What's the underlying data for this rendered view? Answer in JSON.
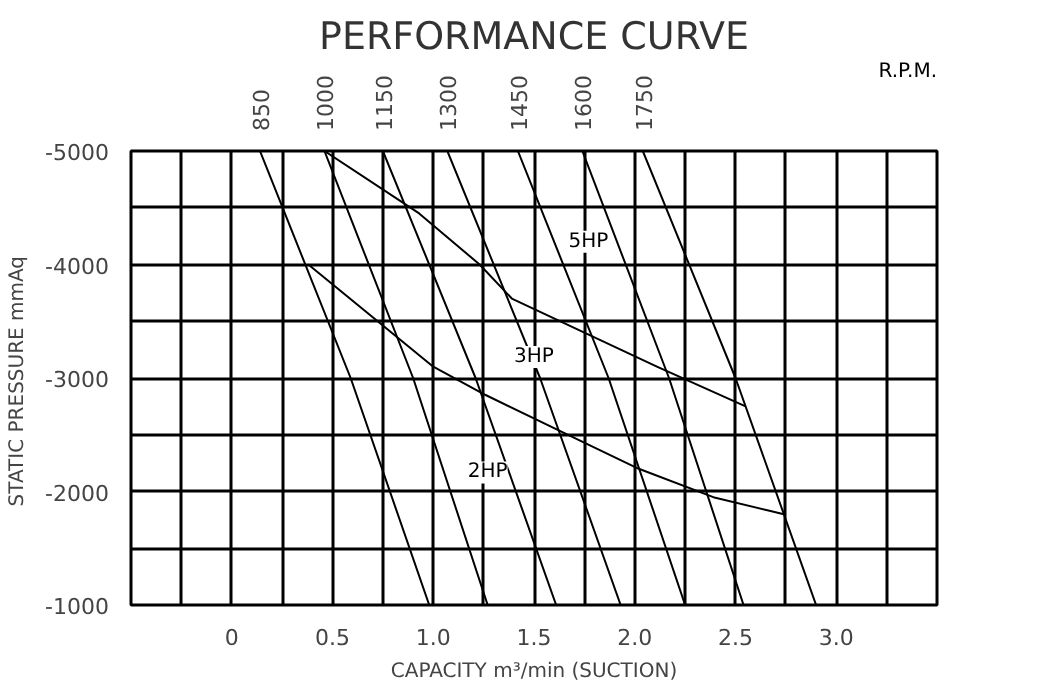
{
  "chart_data": {
    "type": "line",
    "title": "PERFORMANCE CURVE",
    "xlabel": "CAPACITY m³/min (SUCTION)",
    "ylabel": "STATIC PRESSURE  mmAq",
    "legend_title": "R.P.M.",
    "xlim": [
      -0.5,
      3.5
    ],
    "ylim": [
      -1000,
      -5000
    ],
    "xticks": [
      {
        "value": -0.5,
        "label": null
      },
      {
        "value": -0.25,
        "label": null
      },
      0,
      {
        "value": 0.25,
        "label": null
      },
      0.5,
      {
        "value": 0.75,
        "label": null
      },
      {
        "value": 1,
        "label": "1.0"
      },
      {
        "value": 1.25,
        "label": null
      },
      1.5,
      {
        "value": 1.75,
        "label": null
      },
      {
        "value": 2,
        "label": "2.0"
      },
      {
        "value": 2.25,
        "label": null
      },
      2.5,
      {
        "value": 2.75,
        "label": null
      },
      {
        "value": 3,
        "label": "3.0"
      },
      {
        "value": 3.25,
        "label": null
      },
      {
        "value": 3.5,
        "label": null
      }
    ],
    "yticks": [
      -5000,
      {
        "value": -4500,
        "label": null
      },
      -4000,
      {
        "value": -3500,
        "label": null
      },
      -3000,
      {
        "value": -2500,
        "label": null
      },
      -2000,
      {
        "value": -1500,
        "label": null
      },
      -1000
    ],
    "grid": true,
    "legend": false,
    "marker": "none",
    "line_style": "solid",
    "series": [
      {
        "name": "850",
        "color": "#000000",
        "x": [
          0.14,
          0.59,
          0.98
        ],
        "values": [
          -5000,
          -3000,
          -1000
        ]
      },
      {
        "name": "1000",
        "color": "#000000",
        "x": [
          0.46,
          0.9,
          1.27
        ],
        "values": [
          -5000,
          -3000,
          -1000
        ]
      },
      {
        "name": "1150",
        "color": "#000000",
        "x": [
          0.75,
          1.21,
          1.61
        ],
        "values": [
          -5000,
          -3000,
          -1000
        ]
      },
      {
        "name": "1300",
        "color": "#000000",
        "x": [
          1.07,
          1.53,
          1.93
        ],
        "values": [
          -5000,
          -3000,
          -1000
        ]
      },
      {
        "name": "1450",
        "color": "#000000",
        "x": [
          1.42,
          1.87,
          2.25
        ],
        "values": [
          -5000,
          -3000,
          -1000
        ]
      },
      {
        "name": "1600",
        "color": "#000000",
        "x": [
          1.74,
          2.17,
          2.54
        ],
        "values": [
          -5000,
          -3000,
          -1000
        ]
      },
      {
        "name": "1750",
        "color": "#000000",
        "x": [
          2.04,
          2.5,
          2.9
        ],
        "values": [
          -5000,
          -3000,
          -1000
        ]
      },
      {
        "color": "#000000",
        "x": [
          0.46,
          0.93,
          1.23,
          1.39,
          2.11,
          2.55
        ],
        "values": [
          -5000,
          -4450,
          -4000,
          -3700,
          -3100,
          -2750
        ]
      },
      {
        "color": "#000000",
        "x": [
          0.38,
          1.0,
          1.26,
          1.61,
          2.02,
          2.39,
          2.74
        ],
        "values": [
          -4000,
          -3100,
          -2850,
          -2550,
          -2200,
          -1950,
          -1800
        ]
      }
    ],
    "annotations": [
      {
        "text": "5HP",
        "x": 1.77,
        "y": -4200
      },
      {
        "text": "3HP",
        "x": 1.5,
        "y": -3184
      },
      {
        "text": "2HP",
        "x": 1.27,
        "y": -2168
      }
    ]
  }
}
